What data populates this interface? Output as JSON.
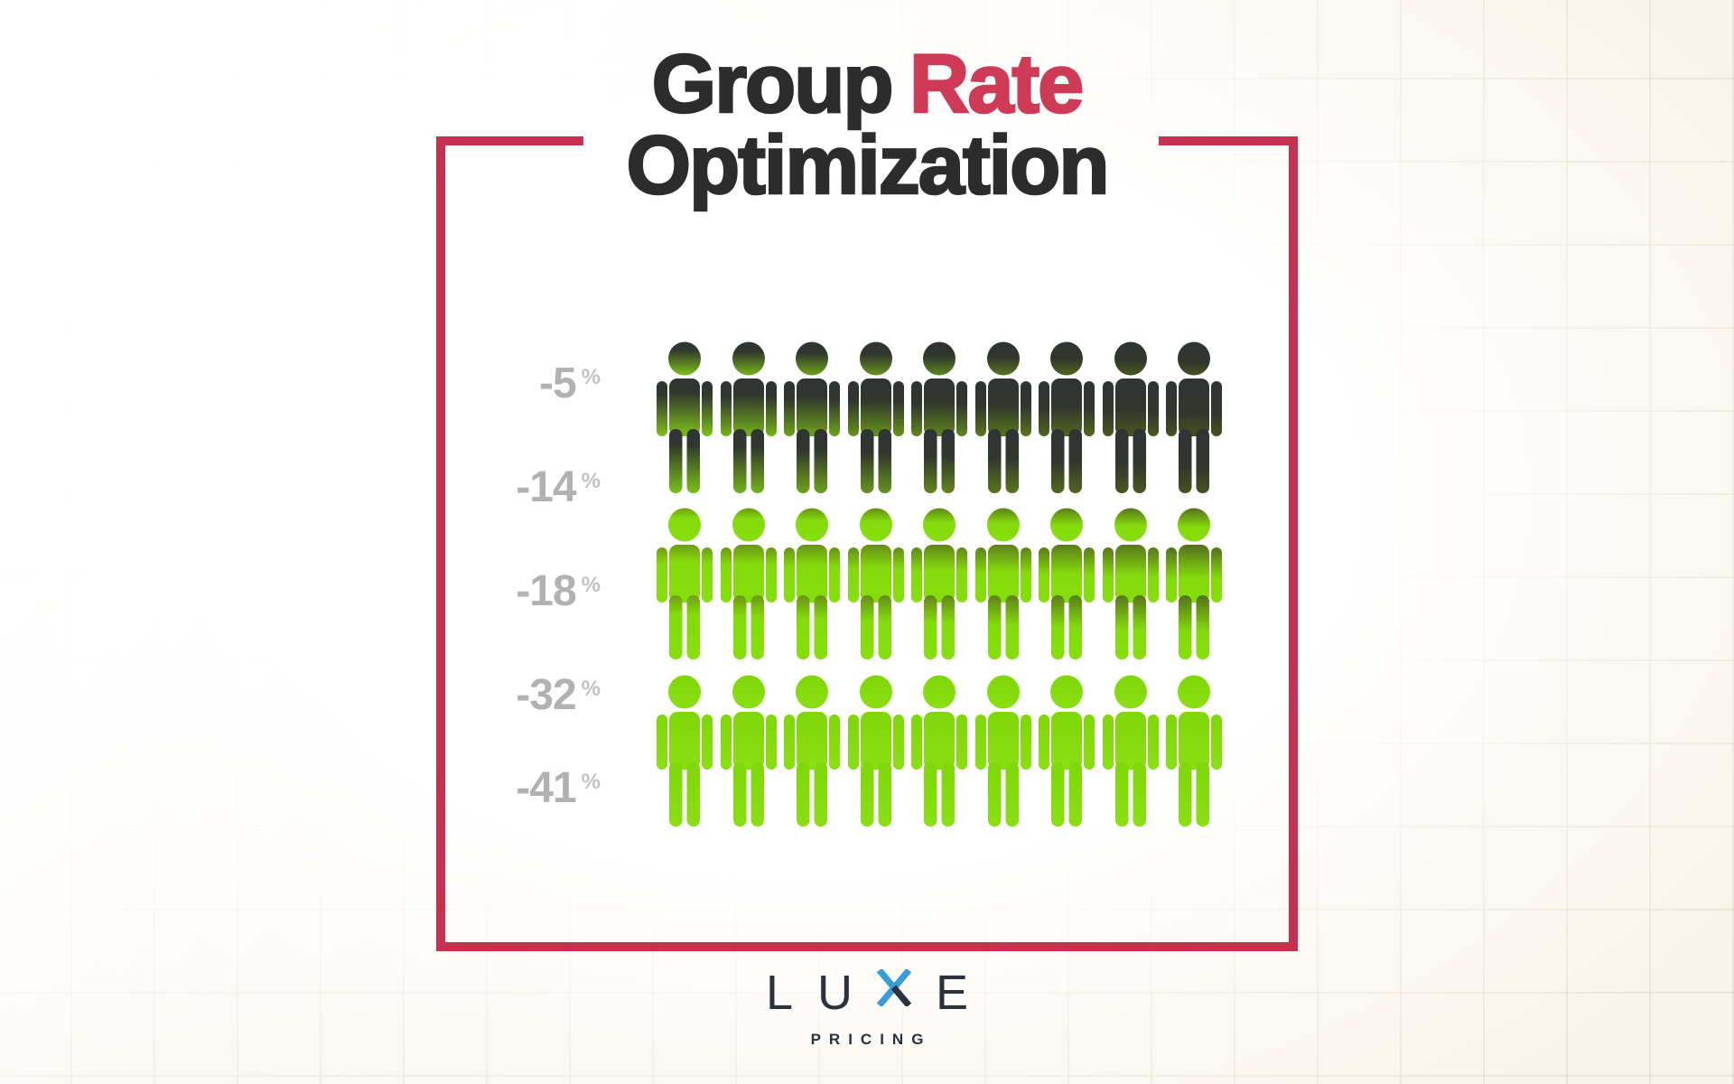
{
  "title": {
    "prefix": "Group",
    "accent": "Rate",
    "line2": "Optimization"
  },
  "chart_data": {
    "type": "pictograph",
    "title": "Group Rate Optimization",
    "ylabels": [
      "-5",
      "-14",
      "-18",
      "-32",
      "-41"
    ],
    "unit": "%",
    "icon_grid": {
      "rows": 3,
      "columns": 9
    },
    "rows": [
      {
        "icons": 9,
        "theme": "dark",
        "meaning": "dark figures fading to green"
      },
      {
        "icons": 9,
        "theme": "mixed",
        "meaning": "olive heads with bright green bodies"
      },
      {
        "icons": 9,
        "theme": "green",
        "meaning": "fully bright green figures"
      }
    ],
    "legend": "none",
    "axis_position": "left"
  },
  "brand": {
    "letters": [
      "L",
      "U",
      "X",
      "E"
    ],
    "tagline": "PRICING"
  },
  "colors": {
    "accent_red": "#C8304F",
    "title_red": "#CF3A56",
    "title_dark": "#2D2C2C",
    "label_gray": "#B1B1B3",
    "label_pct_gray": "#C2C2C4",
    "icon_dark": "#2F3335",
    "icon_green": "#84DB0B",
    "icon_olive": "#6F9E13",
    "brand_dark": "#2A323E",
    "brand_blue": "#3A9BD9",
    "bg_cream": "#F9F3E9",
    "grid_line": "#E3D8C4"
  }
}
